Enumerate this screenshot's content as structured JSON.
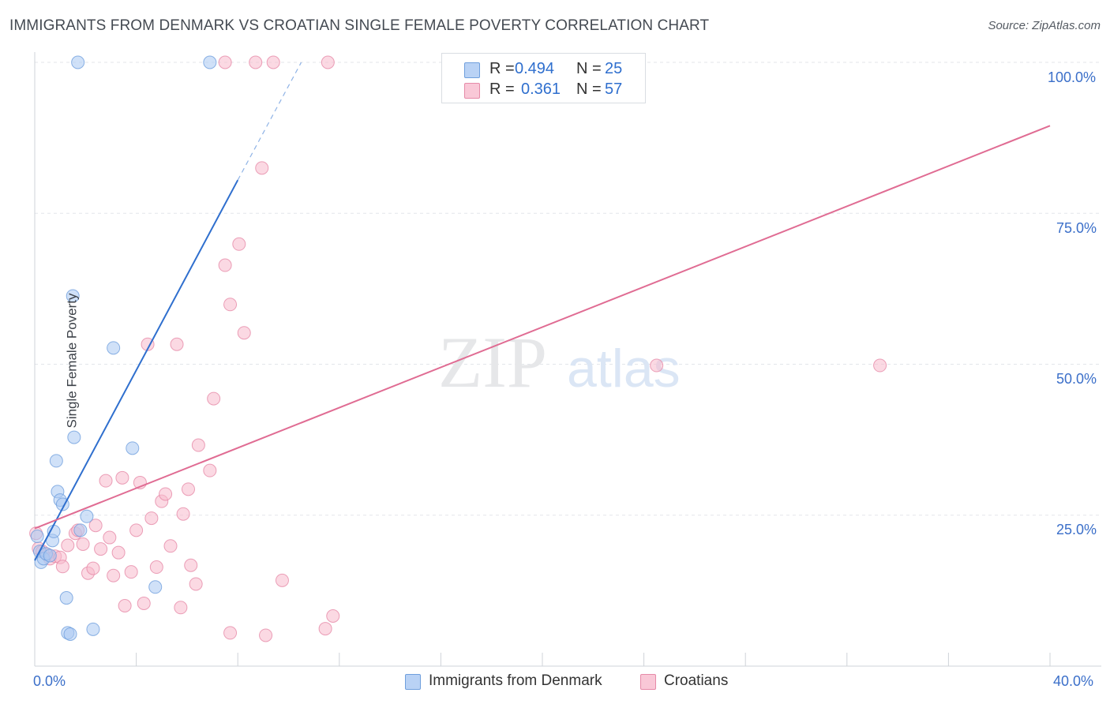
{
  "title": "IMMIGRANTS FROM DENMARK VS CROATIAN SINGLE FEMALE POVERTY CORRELATION CHART",
  "source": "Source: ZipAtlas.com",
  "watermark": {
    "zip": "ZIP",
    "atlas": "atlas"
  },
  "colors": {
    "blue_fill": "#a9c8f3",
    "blue_stroke": "#6f9fdd",
    "blue_line": "#2f6fce",
    "pink_fill": "#f7b9cc",
    "pink_stroke": "#e68aa8",
    "pink_line": "#e06c93",
    "grid": "#e3e6ea",
    "axis_text": "#3b6fc9"
  },
  "legend": {
    "series": [
      {
        "r_label": "R =",
        "r_value": "0.494",
        "n_label": "N =",
        "n_value": "25"
      },
      {
        "r_label": "R =",
        "r_value": "0.361",
        "n_label": "N =",
        "n_value": "57"
      }
    ]
  },
  "bottom_legend": [
    "Immigrants from Denmark",
    "Croatians"
  ],
  "chart_data": {
    "type": "scatter",
    "xlabel": "",
    "ylabel": "Single Female Poverty",
    "xlim": [
      0,
      40
    ],
    "ylim": [
      0,
      100
    ],
    "x_tick_labels": [
      "0.0%",
      "40.0%"
    ],
    "y_tick_labels": [
      "25.0%",
      "50.0%",
      "75.0%",
      "100.0%"
    ],
    "y_ticks": [
      25,
      50,
      75,
      100
    ],
    "grid": true,
    "series": [
      {
        "name": "Immigrants from Denmark",
        "color": "blue",
        "points": [
          [
            0.1,
            21.5
          ],
          [
            0.2,
            19
          ],
          [
            0.25,
            17.2
          ],
          [
            0.35,
            17.8
          ],
          [
            0.45,
            18.6
          ],
          [
            0.6,
            18.3
          ],
          [
            0.7,
            20.8
          ],
          [
            0.75,
            22.3
          ],
          [
            0.85,
            34
          ],
          [
            0.9,
            28.9
          ],
          [
            1.0,
            27.5
          ],
          [
            1.1,
            26.8
          ],
          [
            1.25,
            11.3
          ],
          [
            1.3,
            5.5
          ],
          [
            1.4,
            5.3
          ],
          [
            1.5,
            61.3
          ],
          [
            1.55,
            37.9
          ],
          [
            1.8,
            22.5
          ],
          [
            2.05,
            24.8
          ],
          [
            2.3,
            6.1
          ],
          [
            1.7,
            100
          ],
          [
            6.9,
            100
          ],
          [
            3.1,
            52.7
          ],
          [
            3.85,
            36.1
          ],
          [
            4.75,
            13.1
          ]
        ],
        "trend": {
          "x0": 0,
          "y0": 17.5,
          "x1": 8.0,
          "y1": 80.5,
          "dash_x1": 10.5,
          "dash_y1": 100
        }
      },
      {
        "name": "Croatians",
        "color": "pink",
        "points": [
          [
            0.05,
            22
          ],
          [
            0.15,
            19.5
          ],
          [
            0.3,
            19
          ],
          [
            0.5,
            18.5
          ],
          [
            0.6,
            17.8
          ],
          [
            0.8,
            18.2
          ],
          [
            1.0,
            18
          ],
          [
            1.1,
            16.5
          ],
          [
            1.3,
            20
          ],
          [
            1.6,
            22
          ],
          [
            1.7,
            22.5
          ],
          [
            1.9,
            20.2
          ],
          [
            2.1,
            15.4
          ],
          [
            2.3,
            16.2
          ],
          [
            2.4,
            23.3
          ],
          [
            2.6,
            19.4
          ],
          [
            2.8,
            30.7
          ],
          [
            2.95,
            21.3
          ],
          [
            3.1,
            15
          ],
          [
            3.3,
            18.8
          ],
          [
            3.45,
            31.2
          ],
          [
            3.55,
            10
          ],
          [
            3.8,
            15.6
          ],
          [
            4.0,
            22.5
          ],
          [
            4.15,
            30.4
          ],
          [
            4.3,
            10.4
          ],
          [
            4.45,
            53.3
          ],
          [
            4.6,
            24.5
          ],
          [
            4.8,
            16.4
          ],
          [
            5.0,
            27.3
          ],
          [
            5.15,
            28.5
          ],
          [
            5.35,
            19.9
          ],
          [
            5.6,
            53.3
          ],
          [
            5.75,
            9.7
          ],
          [
            5.85,
            25.2
          ],
          [
            6.05,
            29.3
          ],
          [
            6.15,
            16.7
          ],
          [
            6.35,
            13.6
          ],
          [
            6.45,
            36.6
          ],
          [
            6.9,
            32.4
          ],
          [
            7.05,
            44.3
          ],
          [
            7.5,
            100
          ],
          [
            7.5,
            66.4
          ],
          [
            7.7,
            59.9
          ],
          [
            7.7,
            5.5
          ],
          [
            8.05,
            69.9
          ],
          [
            8.25,
            55.2
          ],
          [
            8.7,
            100
          ],
          [
            8.95,
            82.5
          ],
          [
            9.1,
            5.1
          ],
          [
            9.4,
            100
          ],
          [
            9.75,
            14.2
          ],
          [
            11.45,
            6.2
          ],
          [
            11.75,
            8.3
          ],
          [
            11.55,
            100
          ],
          [
            24.5,
            49.8
          ],
          [
            33.3,
            49.8
          ]
        ],
        "trend": {
          "x0": 0,
          "y0": 22.8,
          "x1": 40,
          "y1": 89.5
        }
      }
    ]
  }
}
